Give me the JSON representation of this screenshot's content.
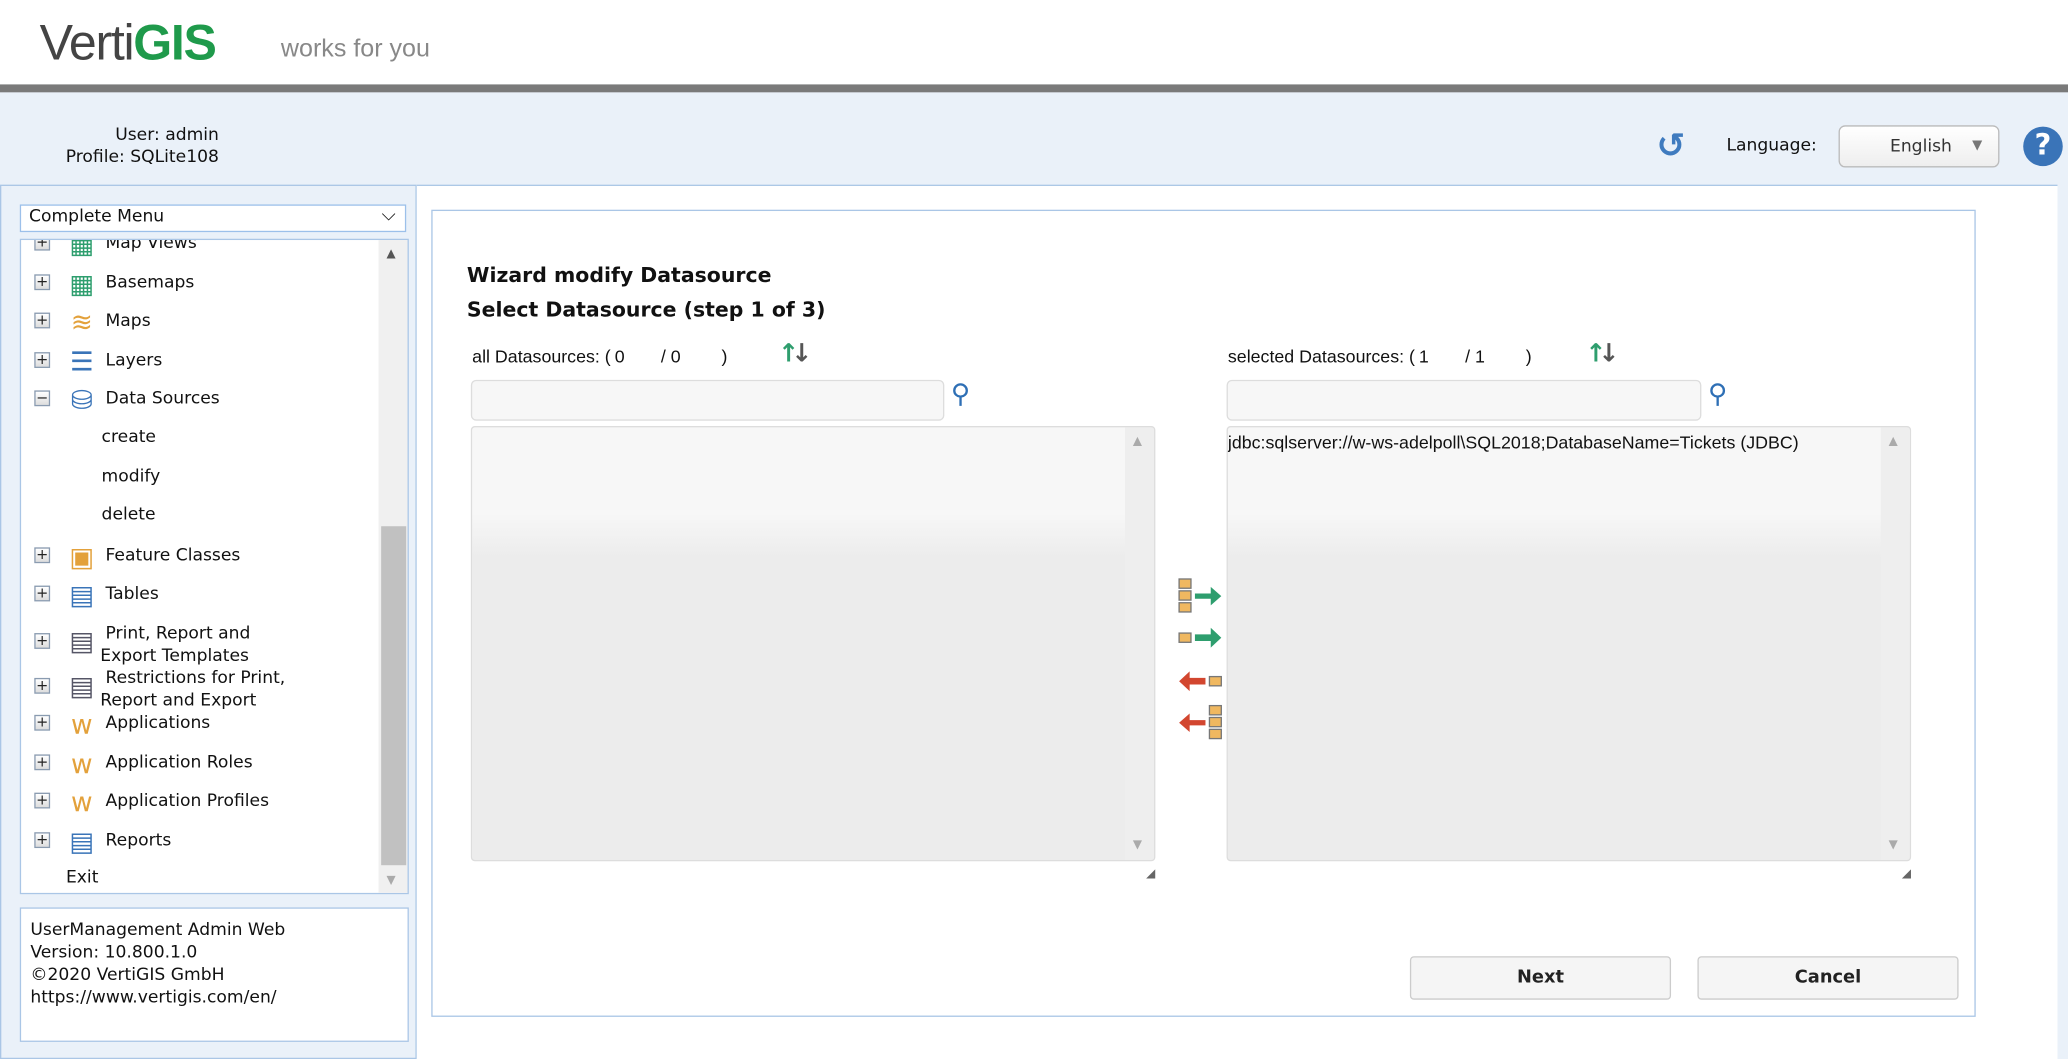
{
  "header": {
    "logo_plain": "Verti",
    "logo_bold": "GIS",
    "tagline": "works for you",
    "user_label": "User: admin",
    "profile_label": "Profile: SQLite108",
    "language_label": "Language:",
    "language_value": "English",
    "icons": {
      "refresh": "refresh-icon",
      "help": "help-icon"
    }
  },
  "colors": {
    "brand_green": "#1f9a4b",
    "accent_blue": "#3a74b8",
    "header_bar": "#7a7a7a",
    "panel_bg": "#eaf1f9",
    "move_right": "#2e9e6e",
    "move_left": "#d2462f"
  },
  "sidebar": {
    "menu_select": "Complete Menu",
    "items": [
      {
        "label": "Map Views",
        "icon": "map-views-icon",
        "expander": "+"
      },
      {
        "label": "Basemaps",
        "icon": "basemaps-icon",
        "expander": "+"
      },
      {
        "label": "Maps",
        "icon": "maps-icon",
        "expander": "+"
      },
      {
        "label": "Layers",
        "icon": "layers-icon",
        "expander": "+"
      },
      {
        "label": "Data Sources",
        "icon": "data-sources-icon",
        "expander": "-",
        "children": [
          "create",
          "modify",
          "delete"
        ]
      },
      {
        "label": "Feature Classes",
        "icon": "feature-classes-icon",
        "expander": "+"
      },
      {
        "label": "Tables",
        "icon": "tables-icon",
        "expander": "+"
      },
      {
        "label": "Print, Report and",
        "label2": "Export Templates",
        "icon": "print-templates-icon",
        "expander": "+"
      },
      {
        "label": "Restrictions for Print,",
        "label2": "Report and Export",
        "icon": "restrictions-icon",
        "expander": "+"
      },
      {
        "label": "Applications",
        "icon": "applications-icon",
        "expander": "+"
      },
      {
        "label": "Application Roles",
        "icon": "application-roles-icon",
        "expander": "+"
      },
      {
        "label": "Application Profiles",
        "icon": "application-profiles-icon",
        "expander": "+"
      },
      {
        "label": "Reports",
        "icon": "reports-icon",
        "expander": "+"
      }
    ],
    "exit": "Exit",
    "info": {
      "line1": "UserManagement Admin Web",
      "line2": "Version: 10.800.1.0",
      "line3": "©2020 VertiGIS GmbH",
      "link": "https://www.vertigis.com/en/"
    }
  },
  "wizard": {
    "title": "Wizard modify Datasource",
    "subtitle": "Select Datasource (step 1 of 3)",
    "all": {
      "label": "all Datasources:",
      "open": "(",
      "shown": "0",
      "sep": "/",
      "total": "0",
      "close": ")",
      "search_value": "",
      "items": []
    },
    "selected": {
      "label": "selected Datasources:",
      "open": "(",
      "shown": "1",
      "sep": "/",
      "total": "1",
      "close": ")",
      "search_value": "",
      "items": [
        "jdbc:sqlserver://w-ws-adelpoll\\SQL2018;DatabaseName=Tickets (JDBC)"
      ]
    },
    "move_buttons": [
      "move-all-right-icon",
      "move-selected-right-icon",
      "move-selected-left-icon",
      "move-all-left-icon"
    ],
    "next": "Next",
    "cancel": "Cancel"
  }
}
